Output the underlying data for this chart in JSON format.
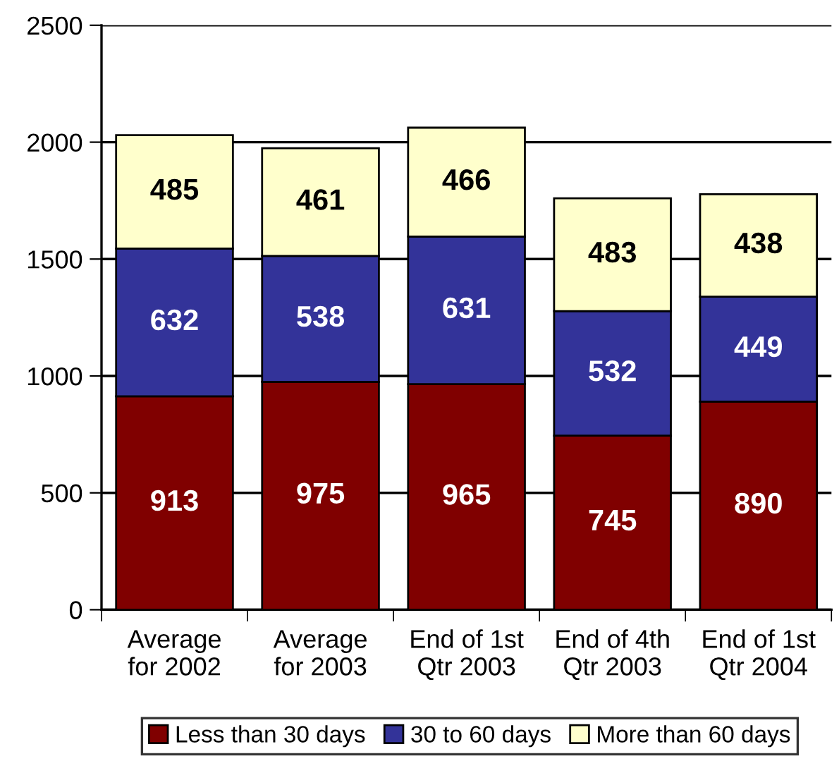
{
  "chart_data": {
    "type": "bar",
    "stacked": true,
    "categories": [
      "Average\nfor 2002",
      "Average\nfor 2003",
      "End of 1st\nQtr 2003",
      "End of 4th\nQtr 2003",
      "End of 1st\nQtr 2004"
    ],
    "series": [
      {
        "name": "Less than 30 days",
        "color": "#800000",
        "values": [
          913,
          975,
          965,
          745,
          890
        ]
      },
      {
        "name": "30 to 60 days",
        "color": "#333399",
        "values": [
          632,
          538,
          631,
          532,
          449
        ]
      },
      {
        "name": "More than 60 days",
        "color": "#ffffcc",
        "values": [
          485,
          461,
          466,
          483,
          438
        ]
      }
    ],
    "ylim": [
      0,
      2500
    ],
    "yticks": [
      0,
      500,
      1000,
      1500,
      2000,
      2500
    ],
    "grid": "y",
    "data_labels": true,
    "legend": "bottom"
  }
}
